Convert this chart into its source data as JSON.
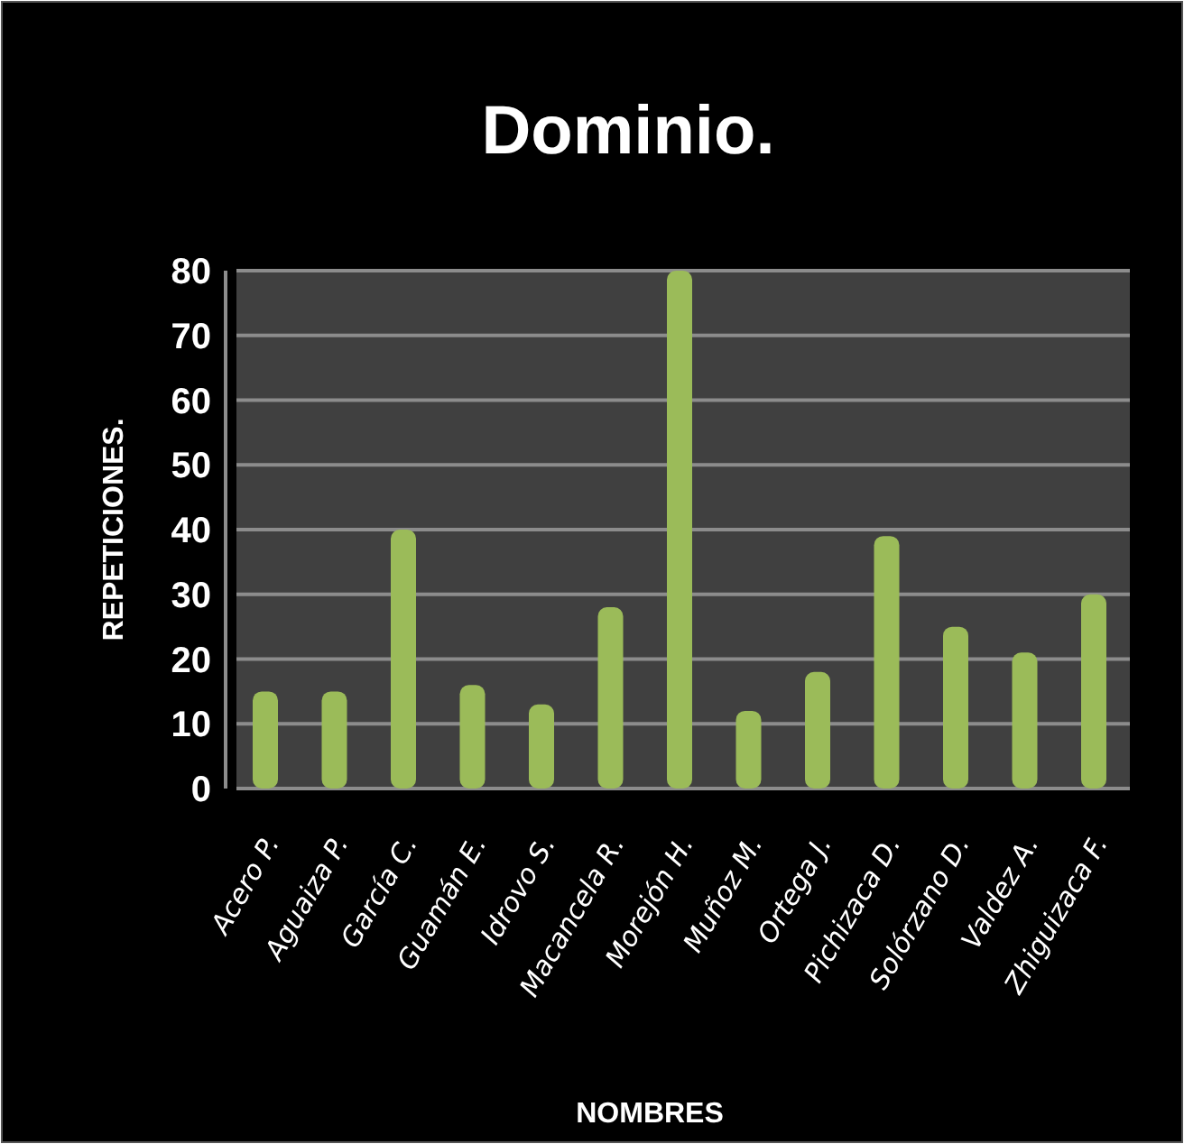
{
  "chart_data": {
    "type": "bar",
    "title": "Dominio.",
    "xlabel": "NOMBRES",
    "ylabel": "REPETICIONES.",
    "categories": [
      "Acero P.",
      "Aguaiza P.",
      "García C.",
      "Guamán E.",
      "Idrovo S.",
      "Macancela R.",
      "Morejón H.",
      "Muñoz M.",
      "Ortega J.",
      "Pichizaca D.",
      "Solórzano D.",
      "Valdez A.",
      "Zhiguizaca F."
    ],
    "values": [
      15,
      15,
      40,
      16,
      13,
      28,
      80,
      12,
      18,
      39,
      25,
      21,
      30
    ],
    "color": "#9bbb59",
    "ylim": [
      0,
      80
    ],
    "yticks": [
      0,
      10,
      20,
      30,
      40,
      50,
      60,
      70,
      80
    ],
    "grid": "y"
  }
}
